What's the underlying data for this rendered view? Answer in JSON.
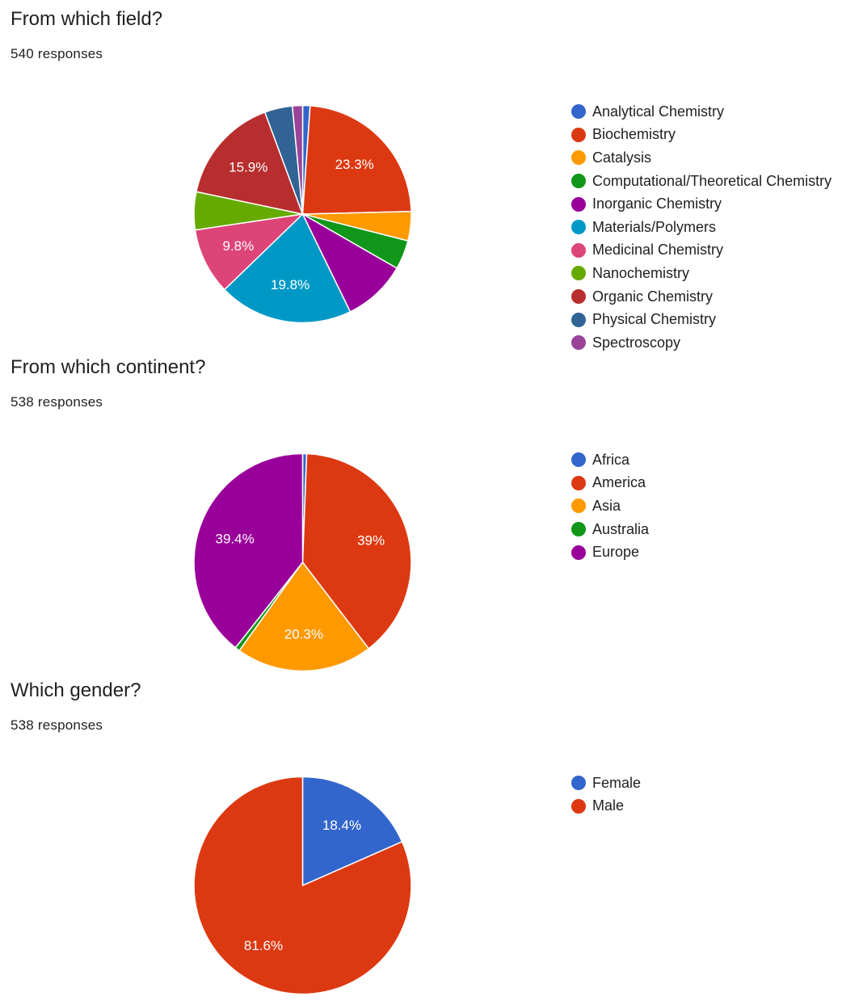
{
  "chart_data": [
    {
      "type": "pie",
      "title": "From which field?",
      "subtitle": "540 responses",
      "legend_position": "right",
      "start_angle_deg": 90,
      "categories": [
        "Analytical Chemistry",
        "Biochemistry",
        "Catalysis",
        "Computational/Theoretical Chemistry",
        "Inorganic Chemistry",
        "Materials/Polymers",
        "Medicinal Chemistry",
        "Nanochemistry",
        "Organic Chemistry",
        "Physical Chemistry",
        "Spectroscopy"
      ],
      "values": [
        1.1,
        23.3,
        4.3,
        4.3,
        9.4,
        19.8,
        9.8,
        5.6,
        15.9,
        4.1,
        1.5
      ],
      "data_labels": [
        "",
        "23.3%",
        "",
        "",
        "",
        "19.8%",
        "9.8%",
        "",
        "15.9%",
        "",
        ""
      ],
      "colors": [
        "#3366cc",
        "#dc3912",
        "#ff9900",
        "#109618",
        "#990099",
        "#0099c6",
        "#dd4477",
        "#66aa00",
        "#b82e2e",
        "#316395",
        "#994499"
      ]
    },
    {
      "type": "pie",
      "title": "From which continent?",
      "subtitle": "538 responses",
      "legend_position": "right",
      "start_angle_deg": 90,
      "categories": [
        "Africa",
        "America",
        "Asia",
        "Australia",
        "Europe"
      ],
      "values": [
        0.6,
        39,
        20.3,
        0.7,
        39.4
      ],
      "data_labels": [
        "",
        "39%",
        "20.3%",
        "",
        "39.4%"
      ],
      "colors": [
        "#3366cc",
        "#dc3912",
        "#ff9900",
        "#109618",
        "#990099"
      ]
    },
    {
      "type": "pie",
      "title": "Which gender?",
      "subtitle": "538 responses",
      "legend_position": "right",
      "start_angle_deg": 90,
      "categories": [
        "Female",
        "Male"
      ],
      "values": [
        18.4,
        81.6
      ],
      "data_labels": [
        "18.4%",
        "81.6%"
      ],
      "colors": [
        "#3366cc",
        "#dc3912"
      ]
    }
  ]
}
